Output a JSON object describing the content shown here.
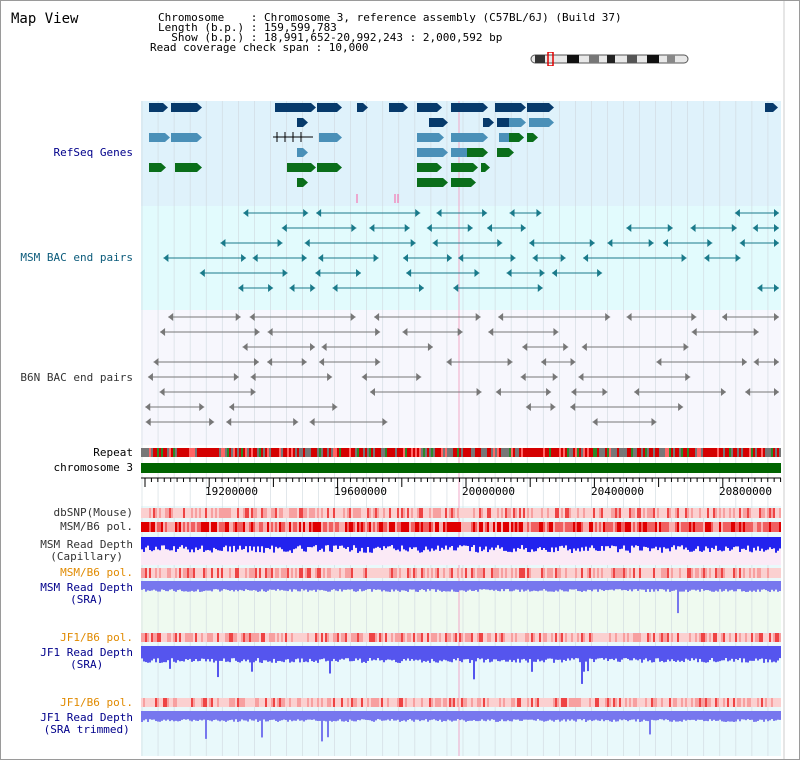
{
  "view_title": "Map View",
  "info": {
    "line1": "Chromosome    : Chromosome 3, reference assembly (C57BL/6J) (Build 37)",
    "line2": "Length (b.p.) : 159,599,783",
    "line3": "  Show (b.p.) : 18,991,652-20,992,243 : 2,000,592 bp",
    "line4": "Read coverage check span : 10,000"
  },
  "tracks": {
    "refseq": "RefSeq Genes",
    "msm_bac": "MSM BAC end pairs",
    "b6n_bac": "B6N BAC end pairs",
    "repeat": "Repeat",
    "chromosome": "chromosome 3",
    "dbsnp": "dbSNP(Mouse)",
    "msm_b6_pol_1": "MSM/B6 pol.",
    "msm_depth_cap_1": "MSM Read Depth",
    "msm_depth_cap_2": "(Capillary)",
    "msm_b6_pol_2": "MSM/B6 pol.",
    "msm_depth_sra_1": "MSM Read Depth",
    "msm_depth_sra_2": "(SRA)",
    "jf1_b6_pol_1": "JF1/B6 pol.",
    "jf1_depth_sra_1": "JF1 Read Depth",
    "jf1_depth_sra_2": "(SRA)",
    "jf1_b6_pol_2": "JF1/B6 pol.",
    "jf1_depth_trim_1": "JF1 Read Depth",
    "jf1_depth_trim_2": "(SRA trimmed)"
  },
  "axis": {
    "ticks": [
      "19200000",
      "19600000",
      "20000000",
      "20400000",
      "20800000"
    ]
  },
  "colors": {
    "refseq_bg": "#dff2fb",
    "msm_bg": "#e2fbfd",
    "b6n_bg": "#f7f7fd",
    "chrom": "#006400",
    "gene_dark": "#073a6b",
    "gene_mid": "#4a90b8",
    "gene_green": "#0a6e1a",
    "msm_line": "#1a7a8a",
    "b6n_line": "#777777",
    "depth_blue": "#2222ee",
    "depth_light": "#7777ee",
    "label_blue": "#00008b",
    "label_teal": "#0a5a7a",
    "label_orange": "#e08a00",
    "label_gray": "#333333"
  },
  "icons": {
    "ideogram": "chromosome-ideogram-icon"
  }
}
